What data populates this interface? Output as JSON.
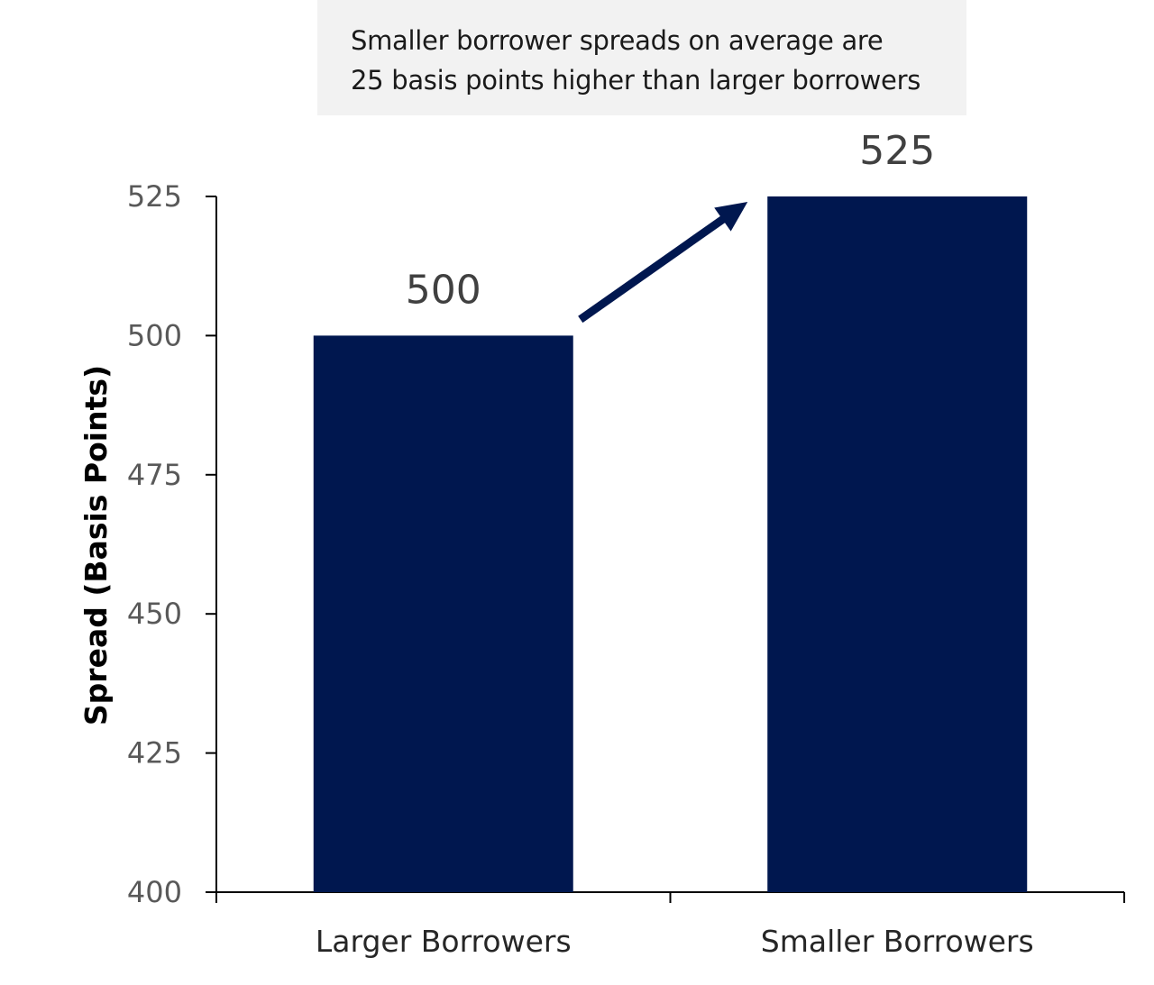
{
  "annotation": {
    "line1": "Smaller borrower spreads on average are",
    "line2": "25 basis points higher than larger borrowers"
  },
  "chart_data": {
    "type": "bar",
    "categories": [
      "Larger Borrowers",
      "Smaller Borrowers"
    ],
    "values": [
      500,
      525
    ],
    "data_labels": [
      "500",
      "525"
    ],
    "title": "",
    "xlabel": "",
    "ylabel": "Spread (Basis Points)",
    "ylim": [
      400,
      525
    ],
    "yticks": [
      400,
      425,
      450,
      475,
      500,
      525
    ],
    "grid": false,
    "legend": "none",
    "colors": {
      "bar": "#00174f",
      "arrow": "#00174f",
      "axis": "#000000"
    }
  }
}
